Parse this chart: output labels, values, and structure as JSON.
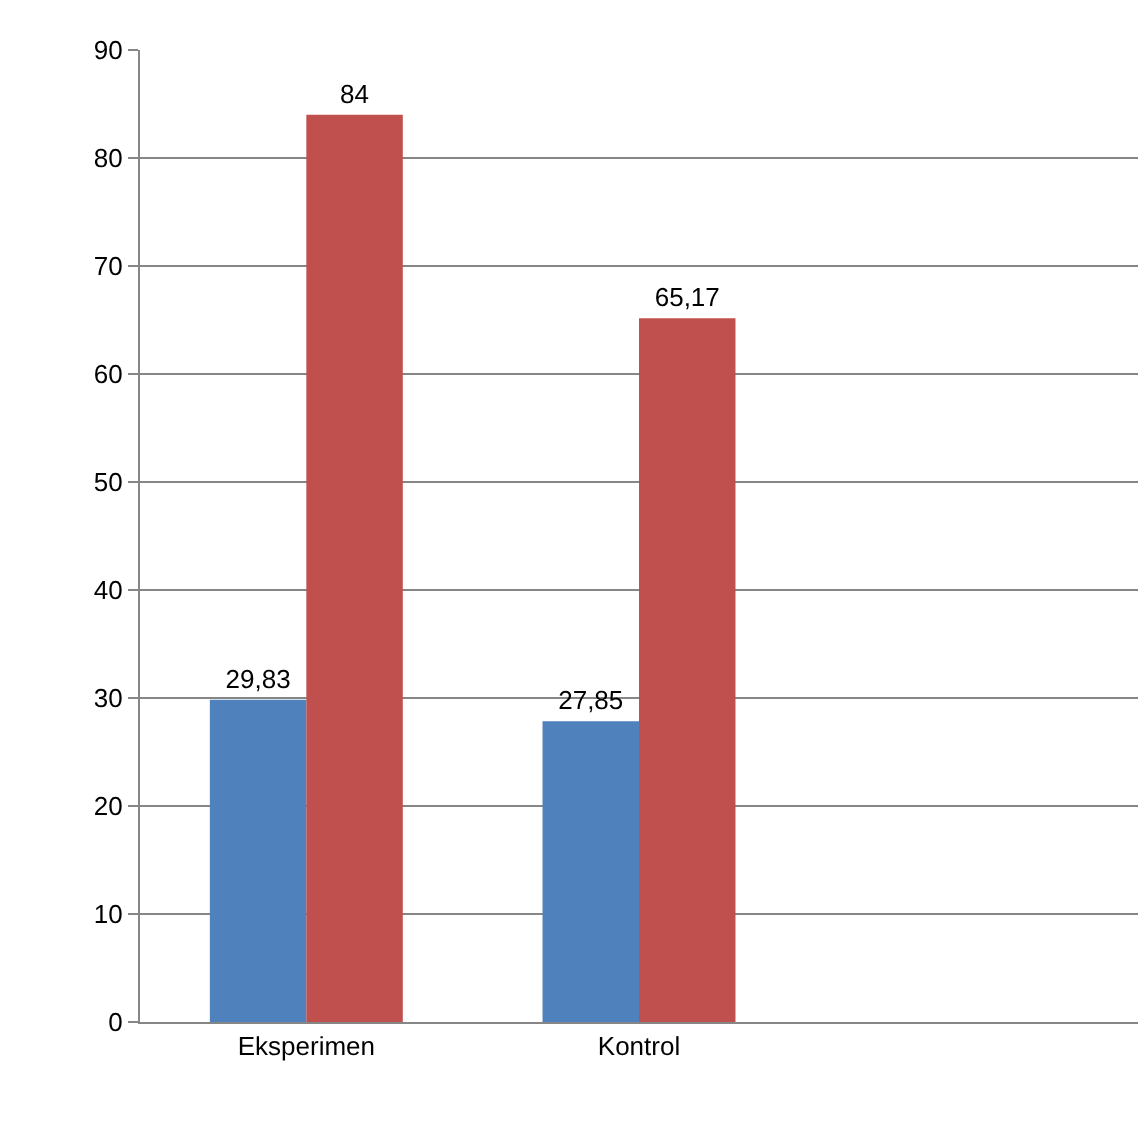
{
  "chart_data": {
    "type": "bar",
    "categories": [
      "Eksperimen",
      "Kontrol",
      null
    ],
    "series": [
      {
        "color": "#4f81bd",
        "values": [
          29.83,
          27.85,
          null
        ],
        "value_labels": [
          "29,83",
          "27,85",
          null
        ]
      },
      {
        "color": "#c0504d",
        "values": [
          84,
          65.17,
          null
        ],
        "value_labels": [
          "84",
          "65,17",
          null
        ]
      }
    ],
    "ylim": [
      0,
      90
    ],
    "yticks": [
      0,
      10,
      20,
      30,
      40,
      50,
      60,
      70,
      80,
      90
    ],
    "grid": "y"
  }
}
